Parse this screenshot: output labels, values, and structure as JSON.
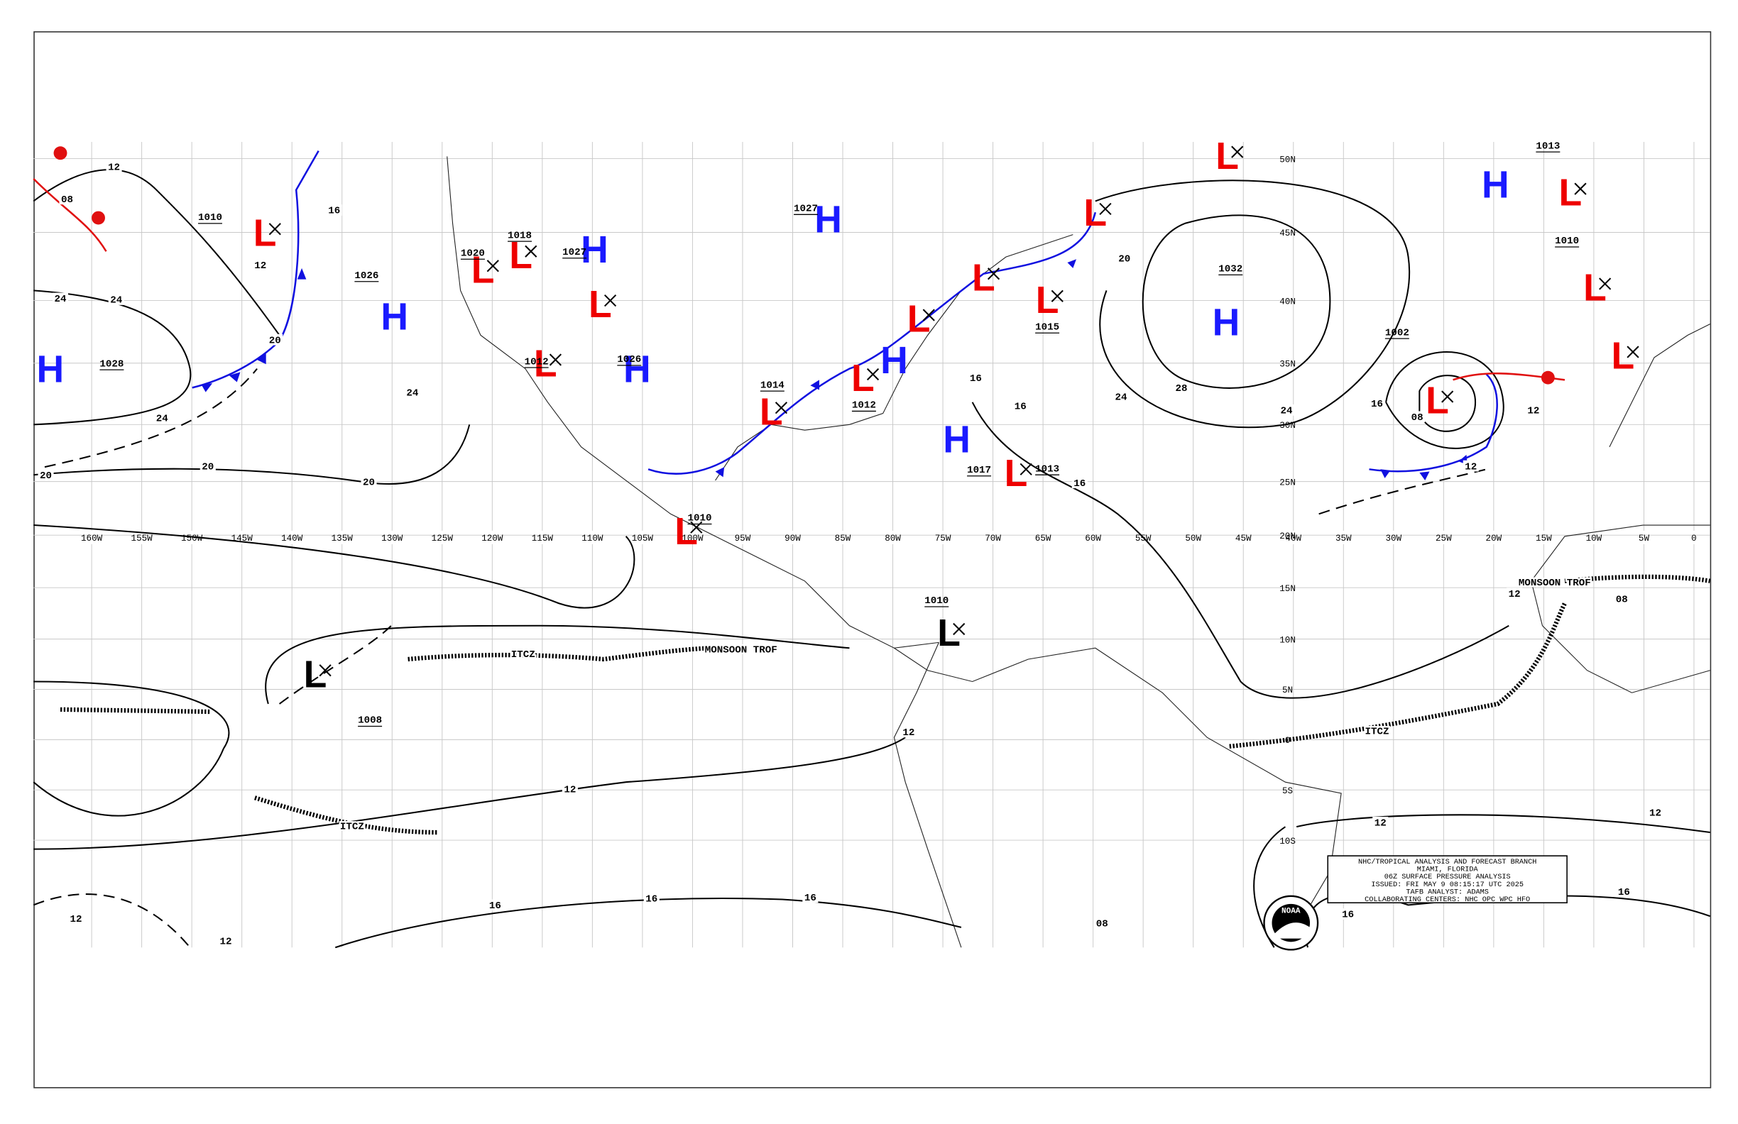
{
  "title_block": {
    "lines": [
      "NHC/TROPICAL ANALYSIS AND FORECAST BRANCH",
      "MIAMI, FLORIDA",
      "06Z SURFACE PRESSURE ANALYSIS",
      "ISSUED: FRI MAY 9 08:15:17 UTC 2025",
      "TAFB ANALYST: ADAMS",
      "COLLABORATING CENTERS: NHC OPC WPC HFO"
    ]
  },
  "logo": "NOAA",
  "longitude_labels": [
    "160W",
    "155W",
    "150W",
    "145W",
    "140W",
    "135W",
    "130W",
    "125W",
    "120W",
    "115W",
    "110W",
    "105W",
    "100W",
    "95W",
    "90W",
    "85W",
    "80W",
    "75W",
    "70W",
    "65W",
    "60W",
    "55W",
    "50W",
    "45W",
    "40W",
    "35W",
    "30W",
    "25W",
    "20W",
    "15W",
    "10W",
    "5W",
    "0"
  ],
  "latitude_labels": [
    "50N",
    "45N",
    "40N",
    "35N",
    "30N",
    "25N",
    "20N",
    "15N",
    "10N",
    "5N",
    "0",
    "5S",
    "10S"
  ],
  "pressure_centers": [
    {
      "symbol": "H",
      "pressure": 1028
    },
    {
      "symbol": "L",
      "pressure": 1010
    },
    {
      "symbol": "H",
      "pressure": 1026
    },
    {
      "symbol": "L",
      "pressure": 1020
    },
    {
      "symbol": "L",
      "pressure": 1018
    },
    {
      "symbol": "H",
      "pressure": 1027
    },
    {
      "symbol": "L",
      "pressure": 1012
    },
    {
      "symbol": "H",
      "pressure": 1026
    },
    {
      "symbol": "L"
    },
    {
      "symbol": "H",
      "pressure": 1027
    },
    {
      "symbol": "L",
      "pressure": 1014
    },
    {
      "symbol": "L",
      "pressure": 1012
    },
    {
      "symbol": "H"
    },
    {
      "symbol": "L"
    },
    {
      "symbol": "L"
    },
    {
      "symbol": "L",
      "pressure": 1015
    },
    {
      "symbol": "H",
      "pressure": 1017
    },
    {
      "symbol": "L",
      "pressure": 1013
    },
    {
      "symbol": "H",
      "pressure": 1032
    },
    {
      "symbol": "L"
    },
    {
      "symbol": "L"
    },
    {
      "symbol": "H"
    },
    {
      "symbol": "L",
      "pressure": 1013
    },
    {
      "symbol": "L",
      "pressure": 1010
    },
    {
      "symbol": "L"
    },
    {
      "symbol": "L",
      "pressure": 1002
    },
    {
      "symbol": "L",
      "pressure": 1010
    },
    {
      "symbol": "L",
      "pressure": 1010
    },
    {
      "symbol": "L",
      "pressure": 1008
    }
  ],
  "isobar_labels": [
    "12",
    "08",
    "16",
    "12",
    "24",
    "24",
    "20",
    "24",
    "24",
    "20",
    "20",
    "20",
    "12",
    "16",
    "16",
    "16",
    "12",
    "12",
    "12",
    "16",
    "16",
    "16",
    "24",
    "28",
    "24",
    "20",
    "12",
    "12",
    "08",
    "16",
    "12",
    "12",
    "16",
    "16",
    "08",
    "08",
    "12"
  ],
  "features": [
    "ITCZ",
    "ITCZ",
    "ITCZ",
    "MONSOON TROF",
    "MONSOON TROF"
  ]
}
